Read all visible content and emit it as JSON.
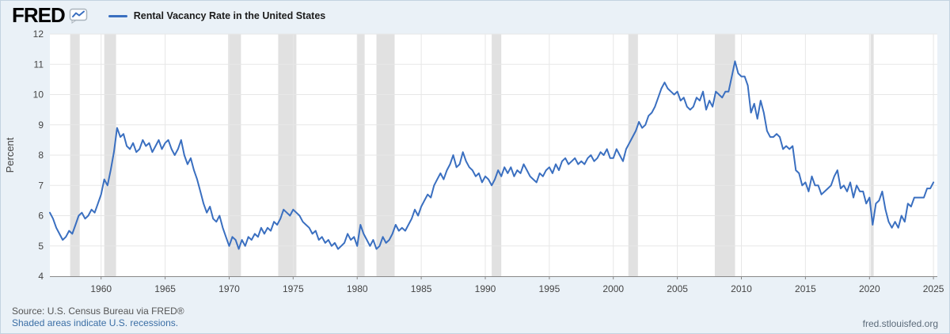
{
  "header": {
    "logo_text": "FRED",
    "legend": {
      "label": "Rental Vacancy Rate in the United States"
    }
  },
  "footer": {
    "source": "Source: U.S. Census Bureau via FRED®",
    "recession_note": "Shaded areas indicate U.S. recessions.",
    "site_link": "fred.stlouisfed.org"
  },
  "colors": {
    "line": "#3a6fc0",
    "recession_band": "#e1e1e1",
    "grid": "#e7e7e7",
    "axis": "#888888",
    "tick_text": "#444444",
    "background": "#eaf1f7",
    "plot_background": "#ffffff",
    "link": "#3b6ea5"
  },
  "chart_data": {
    "type": "line",
    "title": "Rental Vacancy Rate in the United States",
    "xlabel": "",
    "ylabel": "Percent",
    "ylim": [
      4,
      12
    ],
    "yticks": [
      4,
      5,
      6,
      7,
      8,
      9,
      10,
      11,
      12
    ],
    "xlim": [
      1956,
      2025.3
    ],
    "xticks": [
      1960,
      1965,
      1970,
      1975,
      1980,
      1985,
      1990,
      1995,
      2000,
      2005,
      2010,
      2015,
      2020,
      2025
    ],
    "grid": true,
    "legend_position": "top-left",
    "line_color": "#3a6fc0",
    "recession_bands": [
      [
        1957.58,
        1958.33
      ],
      [
        1960.25,
        1961.17
      ],
      [
        1969.92,
        1970.92
      ],
      [
        1973.83,
        1975.25
      ],
      [
        1980.0,
        1980.58
      ],
      [
        1981.5,
        1982.92
      ],
      [
        1990.5,
        1991.25
      ],
      [
        2001.17,
        2001.92
      ],
      [
        2007.92,
        2009.5
      ],
      [
        2020.08,
        2020.33
      ]
    ],
    "series": {
      "name": "Rental Vacancy Rate in the United States",
      "frequency": "quarterly",
      "units": "Percent",
      "start_year": 1956,
      "values_by_year": [
        [
          6.1,
          5.9,
          5.6,
          5.4
        ],
        [
          5.2,
          5.3,
          5.5,
          5.4
        ],
        [
          5.7,
          6.0,
          6.1,
          5.9
        ],
        [
          6.0,
          6.2,
          6.1,
          6.4
        ],
        [
          6.7,
          7.2,
          7.0,
          7.5
        ],
        [
          8.1,
          8.9,
          8.6,
          8.7
        ],
        [
          8.3,
          8.2,
          8.4,
          8.1
        ],
        [
          8.2,
          8.5,
          8.3,
          8.4
        ],
        [
          8.1,
          8.3,
          8.5,
          8.2
        ],
        [
          8.4,
          8.5,
          8.2,
          8.0
        ],
        [
          8.2,
          8.5,
          8.0,
          7.7
        ],
        [
          7.9,
          7.5,
          7.2,
          6.8
        ],
        [
          6.4,
          6.1,
          6.3,
          5.9
        ],
        [
          5.8,
          6.0,
          5.6,
          5.3
        ],
        [
          5.0,
          5.3,
          5.2,
          4.9
        ],
        [
          5.2,
          5.0,
          5.3,
          5.2
        ],
        [
          5.4,
          5.3,
          5.6,
          5.4
        ],
        [
          5.6,
          5.5,
          5.8,
          5.7
        ],
        [
          5.9,
          6.2,
          6.1,
          6.0
        ],
        [
          6.2,
          6.1,
          6.0,
          5.8
        ],
        [
          5.7,
          5.6,
          5.4,
          5.5
        ],
        [
          5.2,
          5.3,
          5.1,
          5.2
        ],
        [
          5.0,
          5.1,
          4.9,
          5.0
        ],
        [
          5.1,
          5.4,
          5.2,
          5.3
        ],
        [
          5.0,
          5.7,
          5.4,
          5.2
        ],
        [
          5.0,
          5.2,
          4.9,
          5.0
        ],
        [
          5.3,
          5.1,
          5.2,
          5.4
        ],
        [
          5.7,
          5.5,
          5.6,
          5.5
        ],
        [
          5.7,
          5.9,
          6.2,
          6.0
        ],
        [
          6.3,
          6.5,
          6.7,
          6.6
        ],
        [
          7.0,
          7.2,
          7.4,
          7.2
        ],
        [
          7.5,
          7.7,
          8.0,
          7.6
        ],
        [
          7.7,
          8.1,
          7.8,
          7.6
        ],
        [
          7.5,
          7.3,
          7.4,
          7.1
        ],
        [
          7.3,
          7.2,
          7.0,
          7.2
        ],
        [
          7.5,
          7.3,
          7.6,
          7.4
        ],
        [
          7.6,
          7.3,
          7.5,
          7.4
        ],
        [
          7.7,
          7.5,
          7.3,
          7.2
        ],
        [
          7.1,
          7.4,
          7.3,
          7.5
        ],
        [
          7.6,
          7.4,
          7.7,
          7.5
        ],
        [
          7.8,
          7.9,
          7.7,
          7.8
        ],
        [
          7.9,
          7.7,
          7.8,
          7.7
        ],
        [
          7.9,
          8.0,
          7.8,
          7.9
        ],
        [
          8.1,
          8.0,
          8.2,
          7.9
        ],
        [
          7.9,
          8.2,
          8.0,
          7.8
        ],
        [
          8.2,
          8.4,
          8.6,
          8.8
        ],
        [
          9.1,
          8.9,
          9.0,
          9.3
        ],
        [
          9.4,
          9.6,
          9.9,
          10.2
        ],
        [
          10.4,
          10.2,
          10.1,
          10.0
        ],
        [
          10.1,
          9.8,
          9.9,
          9.6
        ],
        [
          9.5,
          9.6,
          9.9,
          9.8
        ],
        [
          10.1,
          9.5,
          9.8,
          9.6
        ],
        [
          10.1,
          10.0,
          9.9,
          10.1
        ],
        [
          10.1,
          10.6,
          11.1,
          10.7
        ],
        [
          10.6,
          10.6,
          10.3,
          9.4
        ],
        [
          9.7,
          9.2,
          9.8,
          9.4
        ],
        [
          8.8,
          8.6,
          8.6,
          8.7
        ],
        [
          8.6,
          8.2,
          8.3,
          8.2
        ],
        [
          8.3,
          7.5,
          7.4,
          7.0
        ],
        [
          7.1,
          6.8,
          7.3,
          7.0
        ],
        [
          7.0,
          6.7,
          6.8,
          6.9
        ],
        [
          7.0,
          7.3,
          7.5,
          6.9
        ],
        [
          7.0,
          6.8,
          7.1,
          6.6
        ],
        [
          7.0,
          6.8,
          6.8,
          6.4
        ],
        [
          6.6,
          5.7,
          6.4,
          6.5
        ],
        [
          6.8,
          6.2,
          5.8,
          5.6
        ],
        [
          5.8,
          5.6,
          6.0,
          5.8
        ],
        [
          6.4,
          6.3,
          6.6,
          6.6
        ],
        [
          6.6,
          6.6,
          6.9,
          6.9
        ],
        [
          7.1
        ]
      ]
    }
  }
}
